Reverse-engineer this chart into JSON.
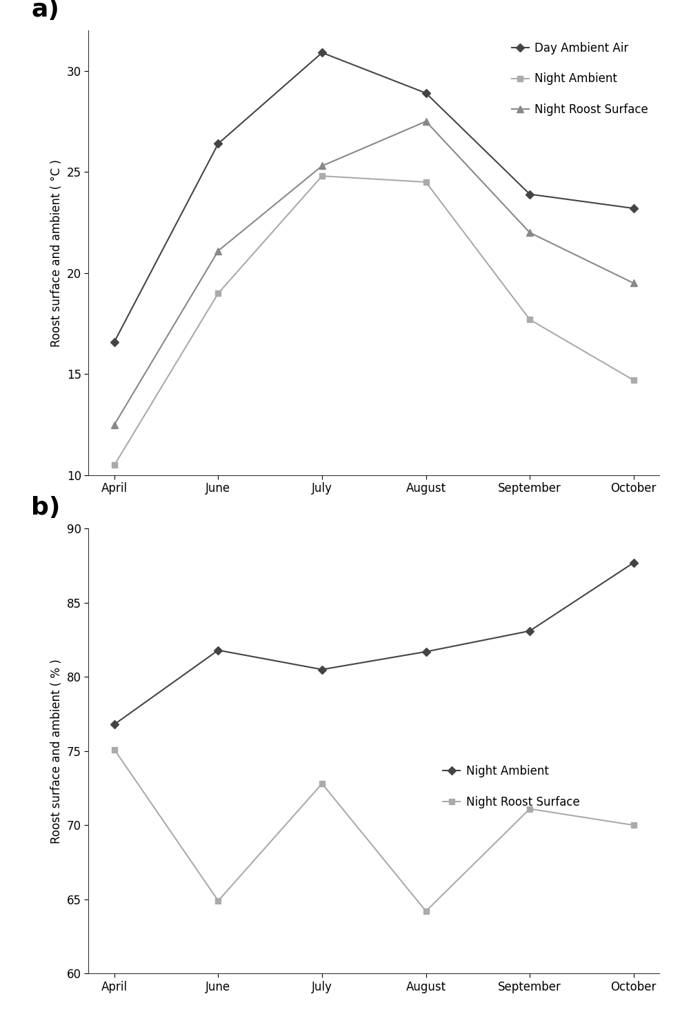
{
  "months": [
    "April",
    "June",
    "July",
    "August",
    "September",
    "October"
  ],
  "panel_a": {
    "day_ambient_air": [
      16.6,
      26.4,
      30.9,
      28.9,
      23.9,
      23.2
    ],
    "night_ambient": [
      10.5,
      19.0,
      24.8,
      24.5,
      17.7,
      14.7
    ],
    "night_roost_surface": [
      12.5,
      21.1,
      25.3,
      27.5,
      22.0,
      19.5
    ],
    "ylabel": "Roost surface and ambient ( °C )",
    "ylim": [
      10,
      32
    ],
    "yticks": [
      10,
      15,
      20,
      25,
      30
    ],
    "legend_labels": [
      "Day Ambient Air",
      "Night Ambient",
      "Night Roost Surface"
    ],
    "colors": [
      "#444444",
      "#aaaaaa",
      "#888888"
    ],
    "markers": [
      "D",
      "s",
      "^"
    ],
    "label": "a)"
  },
  "panel_b": {
    "night_ambient": [
      76.8,
      81.8,
      80.5,
      81.7,
      83.1,
      87.7
    ],
    "night_roost_surface": [
      75.1,
      64.9,
      72.8,
      64.2,
      71.1,
      70.0
    ],
    "ylabel": "Roost surface and ambient ( % )",
    "ylim": [
      60,
      90
    ],
    "yticks": [
      60,
      65,
      70,
      75,
      80,
      85,
      90
    ],
    "legend_labels": [
      "Night Ambient",
      "Night Roost Surface"
    ],
    "colors": [
      "#444444",
      "#aaaaaa"
    ],
    "markers": [
      "D",
      "s"
    ],
    "label": "b)"
  }
}
